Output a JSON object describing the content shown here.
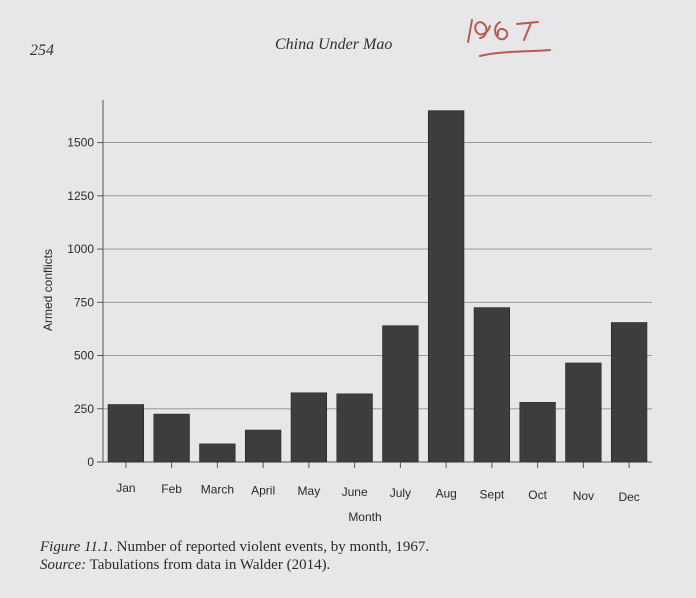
{
  "header": {
    "page_number": "254",
    "running_head": "China Under Mao",
    "handwritten_note": "1967"
  },
  "chart_data": {
    "type": "bar",
    "title": "",
    "xlabel": "Month",
    "ylabel": "Armed conflicts",
    "categories": [
      "Jan",
      "Feb",
      "March",
      "April",
      "May",
      "June",
      "July",
      "Aug",
      "Sept",
      "Oct",
      "Nov",
      "Dec"
    ],
    "values": [
      270,
      225,
      85,
      150,
      325,
      320,
      640,
      1650,
      725,
      280,
      465,
      655
    ],
    "ylim": [
      0,
      1700
    ],
    "yticks": [
      0,
      250,
      500,
      750,
      1000,
      1250,
      1500
    ],
    "grid": true,
    "bar_color": "#3d3d3f"
  },
  "caption": {
    "figure_label": "Figure 11.1.",
    "figure_text": "Number of reported violent events, by month, 1967.",
    "source_label": "Source:",
    "source_text": "Tabulations from data in Walder (2014)."
  }
}
